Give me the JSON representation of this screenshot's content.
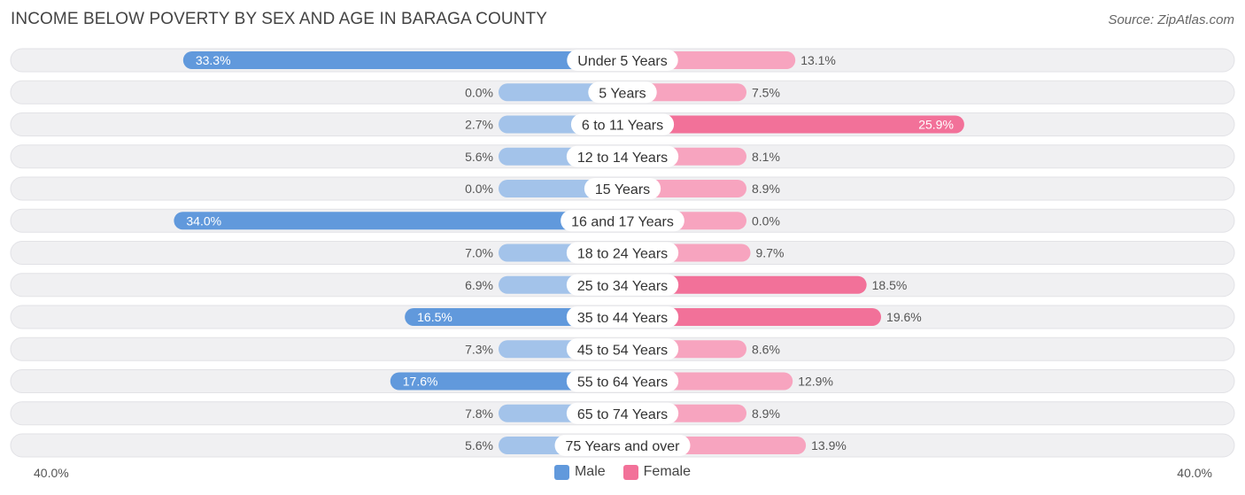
{
  "header": {
    "title": "INCOME BELOW POVERTY BY SEX AND AGE IN BARAGA COUNTY",
    "source": "Source: ZipAtlas.com"
  },
  "legend": {
    "male": "Male",
    "female": "Female"
  },
  "axis": {
    "left_label": "40.0%",
    "right_label": "40.0%"
  },
  "colors": {
    "male_strong": "#6199dc",
    "male_light": "#a3c3ea",
    "female_strong": "#f27199",
    "female_light": "#f7a4bf",
    "track": "#f0f0f2"
  },
  "chart_data": {
    "type": "bar",
    "orientation": "horizontal-diverging",
    "title": "INCOME BELOW POVERTY BY SEX AND AGE IN BARAGA COUNTY",
    "xlim": [
      -40,
      40
    ],
    "unit": "%",
    "categories": [
      "Under 5 Years",
      "5 Years",
      "6 to 11 Years",
      "12 to 14 Years",
      "15 Years",
      "16 and 17 Years",
      "18 to 24 Years",
      "25 to 34 Years",
      "35 to 44 Years",
      "45 to 54 Years",
      "55 to 64 Years",
      "65 to 74 Years",
      "75 Years and over"
    ],
    "series": [
      {
        "name": "Male",
        "values": [
          33.3,
          0.0,
          2.7,
          5.6,
          0.0,
          34.0,
          7.0,
          6.9,
          16.5,
          7.3,
          17.6,
          7.8,
          5.6
        ],
        "labels": [
          "33.3%",
          "0.0%",
          "2.7%",
          "5.6%",
          "0.0%",
          "34.0%",
          "7.0%",
          "6.9%",
          "16.5%",
          "7.3%",
          "17.6%",
          "7.8%",
          "5.6%"
        ]
      },
      {
        "name": "Female",
        "values": [
          13.1,
          7.5,
          25.9,
          8.1,
          8.9,
          0.0,
          9.7,
          18.5,
          19.6,
          8.6,
          12.9,
          8.9,
          13.9
        ],
        "labels": [
          "13.1%",
          "7.5%",
          "25.9%",
          "8.1%",
          "8.9%",
          "0.0%",
          "9.7%",
          "18.5%",
          "19.6%",
          "8.6%",
          "12.9%",
          "8.9%",
          "13.9%"
        ]
      }
    ]
  }
}
